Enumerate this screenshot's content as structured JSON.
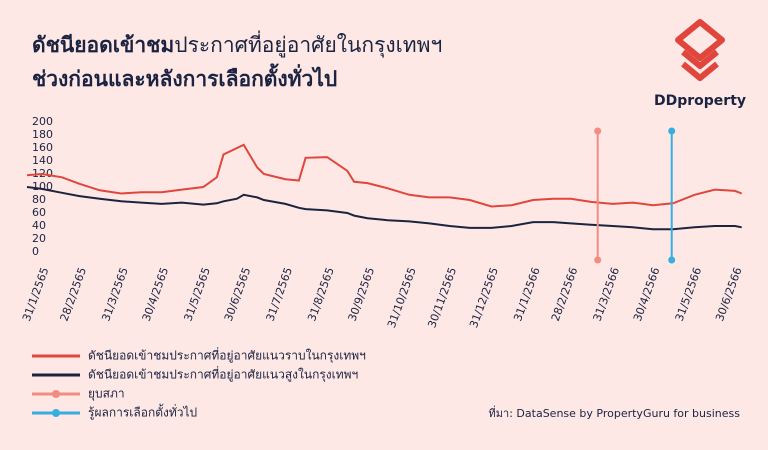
{
  "header": {
    "title_parts": [
      "ดัชนียอดเข้าชม",
      "ประกาศที่อยู่อาศัยในกรุงเทพฯ"
    ],
    "subtitle": "ช่วงก่อนและหลังการเลือกตั้งทั่วไป",
    "brand": "DDproperty"
  },
  "chart_data": {
    "type": "line",
    "x": [
      "20/1/2565",
      "31/1/2565",
      "15/2/2565",
      "28/2/2565",
      "15/3/2565",
      "31/3/2565",
      "15/4/2565",
      "30/4/2565",
      "15/5/2565",
      "31/5/2565",
      "10/6/2565",
      "15/6/2565",
      "25/6/2565",
      "30/6/2565",
      "10/7/2565",
      "15/7/2565",
      "31/7/2565",
      "10/8/2565",
      "15/8/2565",
      "31/8/2565",
      "15/9/2565",
      "20/9/2565",
      "30/9/2565",
      "15/10/2565",
      "31/10/2565",
      "15/11/2565",
      "30/11/2565",
      "15/12/2565",
      "31/12/2565",
      "15/1/2566",
      "31/1/2566",
      "15/2/2566",
      "28/2/2566",
      "15/3/2566",
      "31/3/2566",
      "15/4/2566",
      "30/4/2566",
      "15/5/2566",
      "31/5/2566",
      "15/6/2566",
      "30/6/2566",
      "5/7/2566"
    ],
    "series": [
      {
        "name": "ดัชนียอดเข้าชมประกาศที่อยู่อาศัยแนวราบในกรุงเทพฯ",
        "color": "#e0463c",
        "values": [
          118,
          120,
          115,
          105,
          95,
          90,
          92,
          92,
          96,
          100,
          115,
          150,
          160,
          165,
          130,
          120,
          112,
          110,
          145,
          146,
          125,
          108,
          106,
          98,
          88,
          84,
          84,
          80,
          70,
          72,
          80,
          82,
          82,
          77,
          74,
          76,
          72,
          75,
          88,
          96,
          94,
          90
        ]
      },
      {
        "name": "ดัชนียอดเข้าชมประกาศที่อยู่อาศัยแนวสูงในกรุงเทพฯ",
        "color": "#1c2340",
        "values": [
          100,
          97,
          91,
          86,
          82,
          78,
          76,
          74,
          76,
          73,
          75,
          78,
          82,
          88,
          84,
          80,
          74,
          68,
          66,
          64,
          60,
          56,
          52,
          49,
          47,
          44,
          40,
          37,
          37,
          40,
          46,
          46,
          44,
          42,
          40,
          38,
          35,
          35,
          38,
          40,
          40,
          38
        ]
      }
    ],
    "events": [
      {
        "name": "ยุบสภา",
        "x": "20/3/2566",
        "color": "#f28b80"
      },
      {
        "name": "รู้ผลการเลือกตั้งทั่วไป",
        "x": "14/5/2566",
        "color": "#36aede"
      }
    ],
    "xlim": [
      "20/1/2565",
      "5/7/2566"
    ],
    "xticks": [
      "31/1/2565",
      "28/2/2565",
      "31/3/2565",
      "30/4/2565",
      "31/5/2565",
      "30/6/2565",
      "31/7/2565",
      "31/8/2565",
      "30/9/2565",
      "31/10/2565",
      "30/11/2565",
      "31/12/2565",
      "31/1/2566",
      "28/2/2566",
      "31/3/2566",
      "30/4/2566",
      "31/5/2566",
      "30/6/2566"
    ],
    "ylim": [
      0,
      200
    ],
    "yticks": [
      0,
      20,
      40,
      60,
      80,
      100,
      120,
      140,
      160,
      180,
      200
    ],
    "source": "ที่มา: DataSense by PropertyGuru for business"
  }
}
